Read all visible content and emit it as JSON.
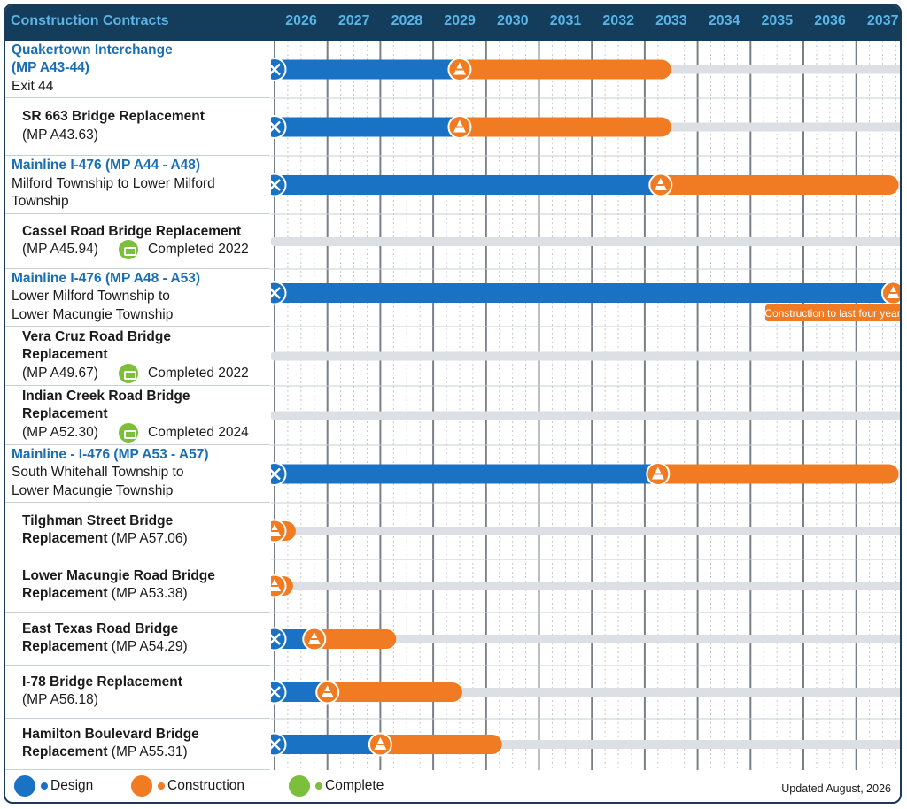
{
  "header": {
    "title": "Construction Contracts"
  },
  "colors": {
    "design": "#1a72c4",
    "construction": "#f07b22",
    "complete": "#7cbf3a",
    "track": "#dcdfe3",
    "header": "#143d5c",
    "header_text": "#5ab4e6"
  },
  "legend": {
    "design": "Design",
    "construction": "Construction",
    "complete": "Complete",
    "updated": "Updated August, 2026"
  },
  "note": "Construction to last four years",
  "chart_data": {
    "type": "gantt",
    "x_start": 2026,
    "x_end": 2038,
    "years": [
      "2026",
      "2027",
      "2028",
      "2029",
      "2030",
      "2031",
      "2032",
      "2033",
      "2034",
      "2035",
      "2036",
      "2037"
    ],
    "tasks": [
      {
        "lines": [
          {
            "text": "Quakertown Interchange",
            "style": "blue"
          },
          {
            "text": "(MP A43-44)",
            "style": "blue"
          },
          {
            "text": "Exit 44",
            "style": "plain"
          }
        ],
        "status": "active",
        "design_start": 2026.0,
        "construction_start": 2029.5,
        "end": 2033.5
      },
      {
        "lines": [
          {
            "text": "SR 663 Bridge Replacement",
            "style": "bold"
          },
          {
            "text": "(MP A43.63)",
            "style": "plain"
          }
        ],
        "status": "active",
        "design_start": 2026.0,
        "construction_start": 2029.5,
        "end": 2033.5
      },
      {
        "lines": [
          {
            "text": "Mainline I-476 (MP A44 - A48)",
            "style": "blue"
          },
          {
            "text": "Milford Township to Lower Milford",
            "style": "plain"
          },
          {
            "text": "Township",
            "style": "plain"
          }
        ],
        "status": "active",
        "design_start": 2026.0,
        "construction_start": 2033.3,
        "end": 2037.8
      },
      {
        "lines": [
          {
            "text": "Cassel Road Bridge Replacement",
            "style": "bold"
          },
          {
            "text": "(MP A45.94)",
            "style": "plain"
          }
        ],
        "status": "complete",
        "completed_text": "Completed 2022"
      },
      {
        "lines": [
          {
            "text": "Mainline I-476 (MP A48 - A53)",
            "style": "blue"
          },
          {
            "text": "Lower Milford Township to",
            "style": "plain"
          },
          {
            "text": "Lower Macungie Township",
            "style": "plain"
          }
        ],
        "status": "active",
        "design_start": 2026.0,
        "construction_start": 2037.7,
        "end": 2037.7,
        "note": true
      },
      {
        "lines": [
          {
            "text": "Vera Cruz Road Bridge",
            "style": "bold"
          },
          {
            "text": "Replacement",
            "style": "bold"
          },
          {
            "text": "(MP A49.67)",
            "style": "plain"
          }
        ],
        "status": "complete",
        "completed_text": "Completed 2022"
      },
      {
        "lines": [
          {
            "text": "Indian Creek Road Bridge",
            "style": "bold"
          },
          {
            "text": "Replacement",
            "style": "bold"
          },
          {
            "text": "(MP A52.30)",
            "style": "plain"
          }
        ],
        "status": "complete",
        "completed_text": "Completed 2024"
      },
      {
        "lines": [
          {
            "text": "Mainline - I-476 (MP A53 - A57)",
            "style": "blue"
          },
          {
            "text": "South Whitehall Township to",
            "style": "plain"
          },
          {
            "text": "Lower Macungie Township",
            "style": "plain"
          }
        ],
        "status": "active",
        "design_start": 2026.0,
        "construction_start": 2033.25,
        "end": 2037.8
      },
      {
        "lines": [
          {
            "text": "Tilghman Street Bridge",
            "style": "bold"
          },
          {
            "text": "Replacement",
            "style": "bold",
            "suffix": " (MP A57.06)"
          }
        ],
        "status": "active",
        "design_start": null,
        "construction_start": 2026.0,
        "end": 2026.4
      },
      {
        "lines": [
          {
            "text": "Lower Macungie Road Bridge",
            "style": "bold"
          },
          {
            "text": "Replacement",
            "style": "bold",
            "suffix": " (MP A53.38)"
          }
        ],
        "status": "active",
        "design_start": null,
        "construction_start": 2026.0,
        "end": 2026.35
      },
      {
        "lines": [
          {
            "text": "East Texas Road Bridge",
            "style": "bold"
          },
          {
            "text": "Replacement",
            "style": "bold",
            "suffix": " (MP A54.29)"
          }
        ],
        "status": "active",
        "design_start": 2026.0,
        "construction_start": 2026.75,
        "end": 2028.3
      },
      {
        "lines": [
          {
            "text": "I-78 Bridge Replacement",
            "style": "bold"
          },
          {
            "text": "(MP A56.18)",
            "style": "plain"
          }
        ],
        "status": "active",
        "design_start": 2026.0,
        "construction_start": 2027.0,
        "end": 2029.55
      },
      {
        "lines": [
          {
            "text": "Hamilton Boulevard Bridge",
            "style": "bold"
          },
          {
            "text": "Replacement",
            "style": "bold",
            "suffix": " (MP A55.31)"
          }
        ],
        "status": "active",
        "design_start": 2026.0,
        "construction_start": 2028.0,
        "end": 2030.3
      }
    ]
  }
}
